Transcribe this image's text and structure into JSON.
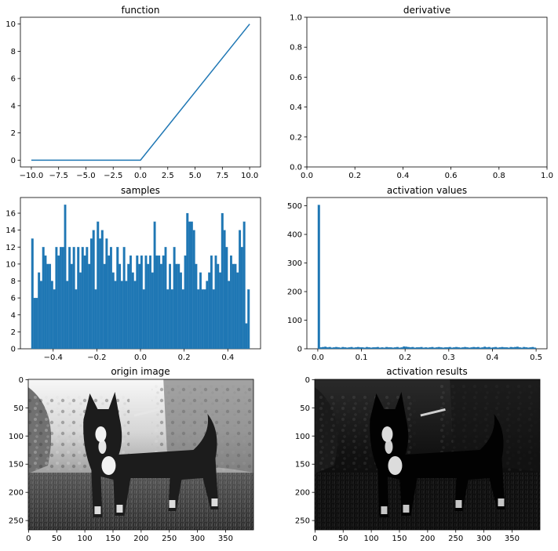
{
  "charts": {
    "function": {
      "title": "function"
    },
    "derivative": {
      "title": "derivative"
    },
    "samples": {
      "title": "samples"
    },
    "activation_values": {
      "title": "activation values"
    },
    "origin_image": {
      "title": "origin image"
    },
    "activation_results": {
      "title": "activation results"
    }
  },
  "chart_data": [
    {
      "id": "function",
      "type": "line",
      "title": "function",
      "xlabel": "",
      "ylabel": "",
      "xlim": [
        -11,
        11
      ],
      "ylim": [
        -0.5,
        10.5
      ],
      "xticks": [
        -10.0,
        -7.5,
        -5.0,
        -2.5,
        0.0,
        2.5,
        5.0,
        7.5,
        10.0
      ],
      "xticklabels": [
        "−10.0",
        "−7.5",
        "−5.0",
        "−2.5",
        "0.0",
        "2.5",
        "5.0",
        "7.5",
        "10.0"
      ],
      "yticks": [
        0,
        2,
        4,
        6,
        8,
        10
      ],
      "yticklabels": [
        "0",
        "2",
        "4",
        "6",
        "8",
        "10"
      ],
      "series": [
        {
          "color": "#1f77b4",
          "x": [
            -10,
            0,
            10
          ],
          "y": [
            0,
            0,
            10
          ]
        }
      ],
      "grid": false
    },
    {
      "id": "derivative",
      "type": "line",
      "title": "derivative",
      "xlabel": "",
      "ylabel": "",
      "xlim": [
        0,
        1
      ],
      "ylim": [
        0,
        1
      ],
      "xticks": [
        0.0,
        0.2,
        0.4,
        0.6,
        0.8,
        1.0
      ],
      "xticklabels": [
        "0.0",
        "0.2",
        "0.4",
        "0.6",
        "0.8",
        "1.0"
      ],
      "yticks": [
        0.0,
        0.2,
        0.4,
        0.6,
        0.8,
        1.0
      ],
      "yticklabels": [
        "0.0",
        "0.2",
        "0.4",
        "0.6",
        "0.8",
        "1.0"
      ],
      "series": [],
      "grid": false
    },
    {
      "id": "samples",
      "type": "bar",
      "title": "samples",
      "xlabel": "",
      "ylabel": "",
      "xlim": [
        -0.55,
        0.55
      ],
      "ylim": [
        0,
        17.85
      ],
      "xticks": [
        -0.4,
        -0.2,
        0.0,
        0.2,
        0.4
      ],
      "xticklabels": [
        "−0.4",
        "−0.2",
        "0.0",
        "0.2",
        "0.4"
      ],
      "yticks": [
        0,
        2,
        4,
        6,
        8,
        10,
        12,
        14,
        16
      ],
      "yticklabels": [
        "0",
        "2",
        "4",
        "6",
        "8",
        "10",
        "12",
        "14",
        "16"
      ],
      "bins": {
        "start": -0.5,
        "width": 0.01
      },
      "values": [
        13,
        6,
        6,
        9,
        8,
        12,
        11,
        10,
        10,
        8,
        7,
        12,
        11,
        12,
        12,
        17,
        8,
        12,
        10,
        12,
        7,
        12,
        9,
        12,
        11,
        12,
        10,
        13,
        14,
        7,
        15,
        13,
        14,
        10,
        13,
        11,
        12,
        9,
        8,
        12,
        10,
        8,
        12,
        8,
        10,
        11,
        9,
        8,
        11,
        10,
        11,
        7,
        11,
        10,
        11,
        9,
        15,
        11,
        11,
        10,
        11,
        12,
        7,
        10,
        7,
        12,
        10,
        10,
        9,
        7,
        11,
        16,
        15,
        15,
        14,
        10,
        7,
        9,
        7,
        7,
        8,
        9,
        11,
        7,
        11,
        10,
        9,
        16,
        14,
        12,
        8,
        11,
        10,
        10,
        9,
        14,
        12,
        15,
        3,
        7
      ],
      "color": "#1f77b4",
      "grid": false
    },
    {
      "id": "activation_values",
      "type": "bar",
      "title": "activation values",
      "xlabel": "",
      "ylabel": "",
      "xlim": [
        -0.025,
        0.525
      ],
      "ylim": [
        0,
        529
      ],
      "xticks": [
        0.0,
        0.1,
        0.2,
        0.3,
        0.4,
        0.5
      ],
      "xticklabels": [
        "0.0",
        "0.1",
        "0.2",
        "0.3",
        "0.4",
        "0.5"
      ],
      "yticks": [
        0,
        100,
        200,
        300,
        400,
        500
      ],
      "yticklabels": [
        "0",
        "100",
        "200",
        "300",
        "400",
        "500"
      ],
      "bins": {
        "start": 0.0,
        "width": 0.005
      },
      "values": [
        503,
        5,
        6,
        7,
        5,
        6,
        4,
        5,
        6,
        5,
        4,
        6,
        5,
        4,
        5,
        6,
        4,
        5,
        6,
        5,
        5,
        4,
        6,
        5,
        4,
        5,
        5,
        6,
        4,
        5,
        4,
        6,
        5,
        5,
        4,
        5,
        6,
        4,
        5,
        8,
        7,
        6,
        5,
        6,
        4,
        5,
        5,
        6,
        4,
        5,
        4,
        5,
        6,
        4,
        5,
        6,
        5,
        4,
        5,
        5,
        6,
        4,
        5,
        6,
        5,
        4,
        5,
        6,
        5,
        4,
        5,
        6,
        5,
        6,
        4,
        5,
        7,
        5,
        6,
        4,
        5,
        6,
        4,
        5,
        6,
        5,
        5,
        4,
        6,
        5,
        6,
        7,
        5,
        4,
        6,
        5,
        4,
        5,
        6,
        4
      ],
      "color": "#1f77b4",
      "grid": false
    },
    {
      "id": "origin_image",
      "type": "heatmap",
      "title": "origin image",
      "xlabel": "",
      "ylabel": "",
      "xlim": [
        -0.5,
        399.5
      ],
      "ylim": [
        266.5,
        -0.5
      ],
      "xticks": [
        0,
        50,
        100,
        150,
        200,
        250,
        300,
        350
      ],
      "xticklabels": [
        "0",
        "50",
        "100",
        "150",
        "200",
        "250",
        "300",
        "350"
      ],
      "yticks": [
        0,
        50,
        100,
        150,
        200,
        250
      ],
      "yticklabels": [
        "0",
        "50",
        "100",
        "150",
        "200",
        "250"
      ],
      "image_size": [
        400,
        267
      ],
      "grid": false
    },
    {
      "id": "activation_results",
      "type": "heatmap",
      "title": "activation results",
      "xlabel": "",
      "ylabel": "",
      "xlim": [
        -0.5,
        399.5
      ],
      "ylim": [
        266.5,
        -0.5
      ],
      "xticks": [
        0,
        50,
        100,
        150,
        200,
        250,
        300,
        350
      ],
      "xticklabels": [
        "0",
        "50",
        "100",
        "150",
        "200",
        "250",
        "300",
        "350"
      ],
      "yticks": [
        0,
        50,
        100,
        150,
        200,
        250
      ],
      "yticklabels": [
        "0",
        "50",
        "100",
        "150",
        "200",
        "250"
      ],
      "image_size": [
        400,
        267
      ],
      "grid": false
    }
  ]
}
